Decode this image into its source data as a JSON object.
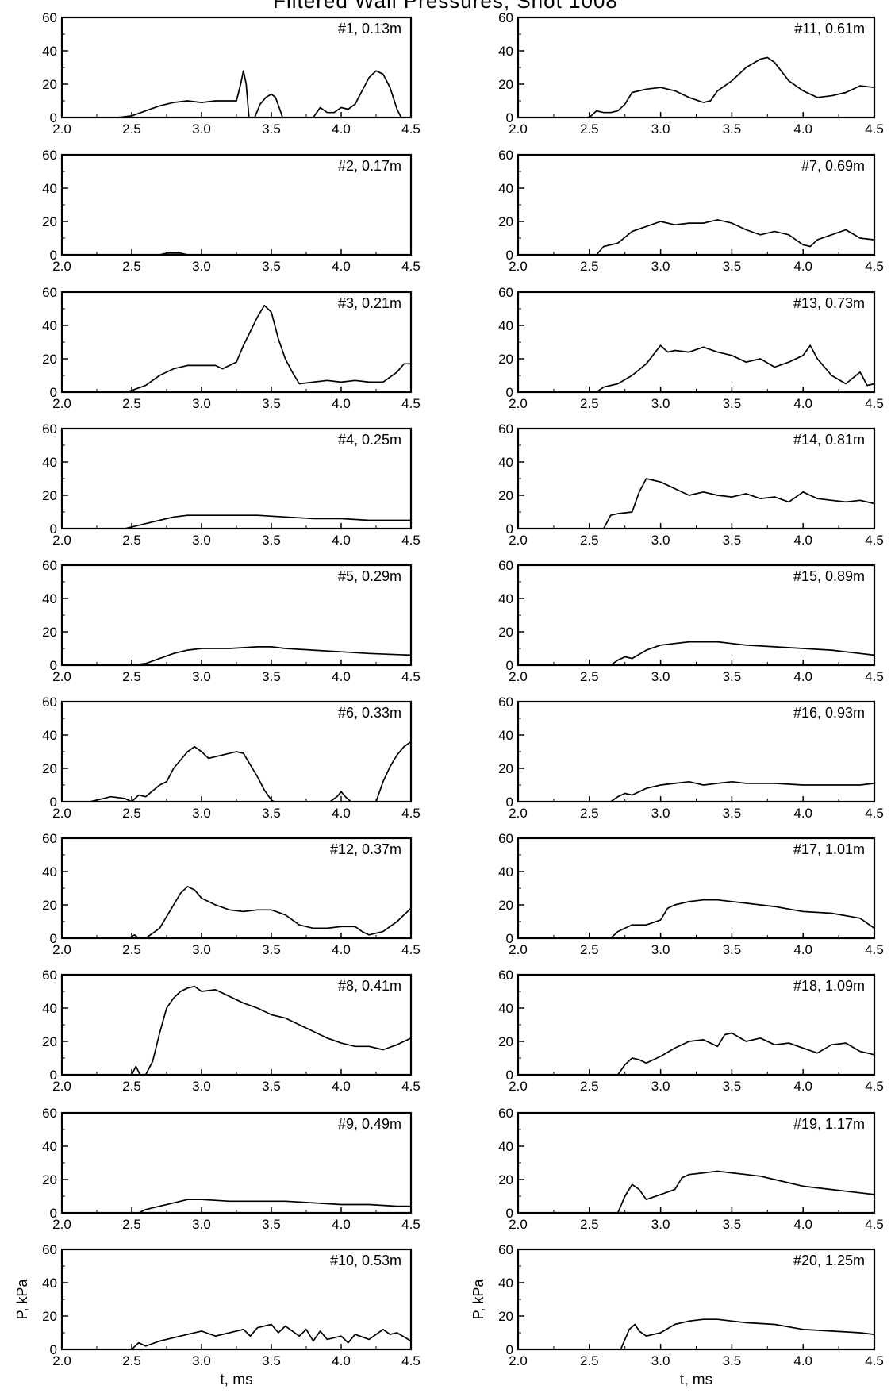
{
  "title": "Filtered Wall Pressures, Shot 1008",
  "axis_ticks_x": [
    "2.0",
    "2.5",
    "3.0",
    "3.5",
    "4.0",
    "4.5"
  ],
  "axis_ticks_y": [
    "0",
    "20",
    "40",
    "60"
  ],
  "left_column": {
    "ylabel": "P, kPa",
    "xlabel": "t, ms"
  },
  "right_column": {
    "ylabel": "P, kPa",
    "xlabel": "t, ms"
  },
  "chart_data": [
    {
      "type": "line",
      "label": "#1, 0.13m",
      "xlim": [
        2.0,
        4.5
      ],
      "ylim": [
        0,
        60
      ],
      "segments": [
        {
          "x": [
            2.0,
            2.4,
            2.5,
            2.6,
            2.7,
            2.8,
            2.9,
            3.0,
            3.1,
            3.2,
            3.25,
            3.28,
            3.3,
            3.32,
            3.34
          ],
          "y": [
            0,
            0,
            1,
            4,
            7,
            9,
            10,
            9,
            10,
            10,
            10,
            20,
            28,
            20,
            0
          ]
        },
        {
          "x": [
            3.38,
            3.42,
            3.46,
            3.5,
            3.53,
            3.56,
            3.58
          ],
          "y": [
            0,
            8,
            12,
            14,
            12,
            5,
            0
          ]
        },
        {
          "x": [
            3.8,
            3.85,
            3.9,
            3.95,
            4.0,
            4.05,
            4.1,
            4.15,
            4.2,
            4.25,
            4.3,
            4.35,
            4.4,
            4.43
          ],
          "y": [
            0,
            6,
            3,
            3,
            6,
            5,
            8,
            16,
            24,
            28,
            26,
            18,
            5,
            0
          ]
        }
      ]
    },
    {
      "type": "line",
      "label": "#11, 0.61m",
      "xlim": [
        2.0,
        4.5
      ],
      "ylim": [
        0,
        60
      ],
      "x": [
        2.0,
        2.5,
        2.55,
        2.6,
        2.65,
        2.7,
        2.75,
        2.8,
        2.9,
        3.0,
        3.1,
        3.2,
        3.3,
        3.35,
        3.4,
        3.5,
        3.6,
        3.7,
        3.75,
        3.8,
        3.9,
        4.0,
        4.1,
        4.2,
        4.3,
        4.4,
        4.5
      ],
      "y": [
        0,
        0,
        4,
        3,
        3,
        4,
        8,
        15,
        17,
        18,
        16,
        12,
        9,
        10,
        16,
        22,
        30,
        35,
        36,
        33,
        22,
        16,
        12,
        13,
        15,
        19,
        18
      ]
    },
    {
      "type": "line",
      "label": "#2, 0.17m",
      "xlim": [
        2.0,
        4.5
      ],
      "ylim": [
        0,
        60
      ],
      "x": [
        2.0,
        2.7,
        2.75,
        2.8,
        2.85,
        2.9,
        4.5
      ],
      "y": [
        0,
        0,
        1,
        1,
        1,
        0,
        0
      ]
    },
    {
      "type": "line",
      "label": "#7, 0.69m",
      "xlim": [
        2.0,
        4.5
      ],
      "ylim": [
        0,
        60
      ],
      "x": [
        2.0,
        2.55,
        2.6,
        2.7,
        2.8,
        2.9,
        3.0,
        3.1,
        3.2,
        3.3,
        3.4,
        3.5,
        3.6,
        3.7,
        3.8,
        3.9,
        4.0,
        4.05,
        4.1,
        4.2,
        4.3,
        4.4,
        4.5
      ],
      "y": [
        0,
        0,
        5,
        7,
        14,
        17,
        20,
        18,
        19,
        19,
        21,
        19,
        15,
        12,
        14,
        12,
        6,
        5,
        9,
        12,
        15,
        10,
        9
      ]
    },
    {
      "type": "line",
      "label": "#3, 0.21m",
      "xlim": [
        2.0,
        4.5
      ],
      "ylim": [
        0,
        60
      ],
      "x": [
        2.0,
        2.45,
        2.5,
        2.6,
        2.7,
        2.8,
        2.9,
        3.0,
        3.1,
        3.15,
        3.2,
        3.25,
        3.3,
        3.4,
        3.45,
        3.5,
        3.55,
        3.6,
        3.65,
        3.7,
        3.8,
        3.9,
        4.0,
        4.1,
        4.2,
        4.3,
        4.4,
        4.45,
        4.5
      ],
      "y": [
        0,
        0,
        1,
        4,
        10,
        14,
        16,
        16,
        16,
        14,
        16,
        18,
        28,
        45,
        52,
        48,
        32,
        20,
        12,
        5,
        6,
        7,
        6,
        7,
        6,
        6,
        12,
        17,
        17
      ]
    },
    {
      "type": "line",
      "label": "#13, 0.73m",
      "xlim": [
        2.0,
        4.5
      ],
      "ylim": [
        0,
        60
      ],
      "x": [
        2.0,
        2.55,
        2.6,
        2.7,
        2.8,
        2.9,
        3.0,
        3.05,
        3.1,
        3.2,
        3.3,
        3.4,
        3.5,
        3.6,
        3.7,
        3.8,
        3.9,
        4.0,
        4.05,
        4.1,
        4.2,
        4.3,
        4.4,
        4.45,
        4.5
      ],
      "y": [
        0,
        0,
        3,
        5,
        10,
        17,
        28,
        24,
        25,
        24,
        27,
        24,
        22,
        18,
        20,
        15,
        18,
        22,
        28,
        20,
        10,
        5,
        12,
        4,
        5
      ]
    },
    {
      "type": "line",
      "label": "#4, 0.25m",
      "xlim": [
        2.0,
        4.5
      ],
      "ylim": [
        0,
        60
      ],
      "x": [
        2.0,
        2.45,
        2.5,
        2.6,
        2.7,
        2.8,
        2.9,
        3.0,
        3.2,
        3.4,
        3.6,
        3.8,
        4.0,
        4.2,
        4.5
      ],
      "y": [
        0,
        0,
        1,
        3,
        5,
        7,
        8,
        8,
        8,
        8,
        7,
        6,
        6,
        5,
        5
      ]
    },
    {
      "type": "line",
      "label": "#14, 0.81m",
      "xlim": [
        2.0,
        4.5
      ],
      "ylim": [
        0,
        60
      ],
      "x": [
        2.0,
        2.6,
        2.65,
        2.7,
        2.8,
        2.85,
        2.9,
        3.0,
        3.1,
        3.2,
        3.3,
        3.4,
        3.5,
        3.6,
        3.7,
        3.8,
        3.9,
        4.0,
        4.1,
        4.2,
        4.3,
        4.4,
        4.5
      ],
      "y": [
        0,
        0,
        8,
        9,
        10,
        22,
        30,
        28,
        24,
        20,
        22,
        20,
        19,
        21,
        18,
        19,
        16,
        22,
        18,
        17,
        16,
        17,
        15
      ]
    },
    {
      "type": "line",
      "label": "#5, 0.29m",
      "xlim": [
        2.0,
        4.5
      ],
      "ylim": [
        0,
        60
      ],
      "x": [
        2.0,
        2.5,
        2.6,
        2.7,
        2.8,
        2.9,
        3.0,
        3.2,
        3.4,
        3.5,
        3.6,
        3.8,
        4.0,
        4.2,
        4.5
      ],
      "y": [
        0,
        0,
        1,
        4,
        7,
        9,
        10,
        10,
        11,
        11,
        10,
        9,
        8,
        7,
        6
      ]
    },
    {
      "type": "line",
      "label": "#15, 0.89m",
      "xlim": [
        2.0,
        4.5
      ],
      "ylim": [
        0,
        60
      ],
      "x": [
        2.0,
        2.65,
        2.7,
        2.75,
        2.8,
        2.9,
        3.0,
        3.1,
        3.2,
        3.3,
        3.4,
        3.6,
        3.8,
        4.0,
        4.2,
        4.4,
        4.5
      ],
      "y": [
        0,
        0,
        3,
        5,
        4,
        9,
        12,
        13,
        14,
        14,
        14,
        12,
        11,
        10,
        9,
        7,
        6
      ]
    },
    {
      "type": "line",
      "label": "#6, 0.33m",
      "xlim": [
        2.0,
        4.5
      ],
      "ylim": [
        0,
        60
      ],
      "segments": [
        {
          "x": [
            2.0,
            2.2,
            2.35,
            2.45,
            2.5,
            2.55,
            2.6,
            2.7,
            2.75,
            2.8,
            2.9,
            2.95,
            3.0,
            3.05,
            3.1,
            3.2,
            3.25,
            3.3,
            3.35,
            3.4,
            3.45,
            3.5,
            3.52
          ],
          "y": [
            0,
            0,
            3,
            2,
            0,
            4,
            3,
            10,
            12,
            20,
            30,
            33,
            30,
            26,
            27,
            29,
            30,
            29,
            22,
            15,
            7,
            1,
            0
          ]
        },
        {
          "x": [
            3.92,
            3.97,
            4.0,
            4.03,
            4.07
          ],
          "y": [
            0,
            3,
            6,
            3,
            0
          ]
        },
        {
          "x": [
            4.25,
            4.3,
            4.35,
            4.4,
            4.45,
            4.5
          ],
          "y": [
            0,
            12,
            21,
            28,
            33,
            36
          ]
        }
      ]
    },
    {
      "type": "line",
      "label": "#16, 0.93m",
      "xlim": [
        2.0,
        4.5
      ],
      "ylim": [
        0,
        60
      ],
      "x": [
        2.0,
        2.65,
        2.7,
        2.75,
        2.8,
        2.9,
        3.0,
        3.1,
        3.2,
        3.3,
        3.4,
        3.5,
        3.6,
        3.8,
        4.0,
        4.2,
        4.4,
        4.5
      ],
      "y": [
        0,
        0,
        3,
        5,
        4,
        8,
        10,
        11,
        12,
        10,
        11,
        12,
        11,
        11,
        10,
        10,
        10,
        11
      ]
    },
    {
      "type": "line",
      "label": "#12, 0.37m",
      "xlim": [
        2.0,
        4.5
      ],
      "ylim": [
        0,
        60
      ],
      "segments": [
        {
          "x": [
            2.48,
            2.52,
            2.55
          ],
          "y": [
            0,
            2,
            0
          ]
        },
        {
          "x": [
            2.6,
            2.7,
            2.8,
            2.85,
            2.9,
            2.95,
            3.0,
            3.1,
            3.2,
            3.3,
            3.4,
            3.5,
            3.6,
            3.7,
            3.8,
            3.9,
            4.0,
            4.1,
            4.15,
            4.2,
            4.3,
            4.4,
            4.5
          ],
          "y": [
            0,
            6,
            20,
            27,
            31,
            29,
            24,
            20,
            17,
            16,
            17,
            17,
            14,
            8,
            6,
            6,
            7,
            7,
            4,
            2,
            4,
            10,
            18
          ]
        }
      ]
    },
    {
      "type": "line",
      "label": "#17, 1.01m",
      "xlim": [
        2.0,
        4.5
      ],
      "ylim": [
        0,
        60
      ],
      "x": [
        2.0,
        2.65,
        2.7,
        2.75,
        2.8,
        2.9,
        3.0,
        3.05,
        3.1,
        3.2,
        3.3,
        3.4,
        3.5,
        3.6,
        3.8,
        4.0,
        4.2,
        4.4,
        4.5
      ],
      "y": [
        0,
        0,
        4,
        6,
        8,
        8,
        11,
        18,
        20,
        22,
        23,
        23,
        22,
        21,
        19,
        16,
        15,
        12,
        6
      ]
    },
    {
      "type": "line",
      "label": "#8, 0.41m",
      "xlim": [
        2.0,
        4.5
      ],
      "ylim": [
        0,
        60
      ],
      "segments": [
        {
          "x": [
            2.5,
            2.53,
            2.56
          ],
          "y": [
            0,
            5,
            0
          ]
        },
        {
          "x": [
            2.6,
            2.65,
            2.7,
            2.75,
            2.8,
            2.85,
            2.9,
            2.95,
            3.0,
            3.1,
            3.2,
            3.3,
            3.4,
            3.5,
            3.6,
            3.7,
            3.8,
            3.9,
            4.0,
            4.1,
            4.2,
            4.3,
            4.4,
            4.5
          ],
          "y": [
            0,
            8,
            25,
            40,
            46,
            50,
            52,
            53,
            50,
            51,
            47,
            43,
            40,
            36,
            34,
            30,
            26,
            22,
            19,
            17,
            17,
            15,
            18,
            22
          ]
        }
      ]
    },
    {
      "type": "line",
      "label": "#18, 1.09m",
      "xlim": [
        2.0,
        4.5
      ],
      "ylim": [
        0,
        60
      ],
      "x": [
        2.0,
        2.7,
        2.75,
        2.8,
        2.85,
        2.9,
        3.0,
        3.1,
        3.2,
        3.3,
        3.4,
        3.45,
        3.5,
        3.6,
        3.7,
        3.8,
        3.9,
        4.0,
        4.1,
        4.2,
        4.3,
        4.4,
        4.5
      ],
      "y": [
        0,
        0,
        6,
        10,
        9,
        7,
        11,
        16,
        20,
        21,
        17,
        24,
        25,
        20,
        22,
        18,
        19,
        16,
        13,
        18,
        19,
        14,
        12
      ]
    },
    {
      "type": "line",
      "label": "#9, 0.49m",
      "xlim": [
        2.0,
        4.5
      ],
      "ylim": [
        0,
        60
      ],
      "x": [
        2.0,
        2.55,
        2.6,
        2.7,
        2.8,
        2.9,
        3.0,
        3.2,
        3.4,
        3.6,
        3.8,
        4.0,
        4.2,
        4.4,
        4.5
      ],
      "y": [
        0,
        0,
        2,
        4,
        6,
        8,
        8,
        7,
        7,
        7,
        6,
        5,
        5,
        4,
        4
      ]
    },
    {
      "type": "line",
      "label": "#19, 1.17m",
      "xlim": [
        2.0,
        4.5
      ],
      "ylim": [
        0,
        60
      ],
      "x": [
        2.0,
        2.7,
        2.75,
        2.8,
        2.85,
        2.9,
        3.0,
        3.1,
        3.15,
        3.2,
        3.3,
        3.4,
        3.5,
        3.6,
        3.7,
        3.8,
        4.0,
        4.2,
        4.4,
        4.5
      ],
      "y": [
        0,
        0,
        10,
        17,
        14,
        8,
        11,
        14,
        21,
        23,
        24,
        25,
        24,
        23,
        22,
        20,
        16,
        14,
        12,
        11
      ]
    },
    {
      "type": "line",
      "label": "#10, 0.53m",
      "xlim": [
        2.0,
        4.5
      ],
      "ylim": [
        0,
        60
      ],
      "x": [
        2.0,
        2.5,
        2.55,
        2.6,
        2.7,
        2.8,
        2.9,
        3.0,
        3.1,
        3.2,
        3.3,
        3.35,
        3.4,
        3.5,
        3.55,
        3.6,
        3.7,
        3.75,
        3.8,
        3.85,
        3.9,
        4.0,
        4.05,
        4.1,
        4.2,
        4.3,
        4.35,
        4.4,
        4.5
      ],
      "y": [
        0,
        0,
        4,
        2,
        5,
        7,
        9,
        11,
        8,
        10,
        12,
        8,
        13,
        15,
        10,
        14,
        8,
        12,
        5,
        11,
        6,
        8,
        4,
        9,
        6,
        12,
        9,
        10,
        5
      ]
    },
    {
      "type": "line",
      "label": "#20, 1.25m",
      "xlim": [
        2.0,
        4.5
      ],
      "ylim": [
        0,
        60
      ],
      "x": [
        2.0,
        2.72,
        2.78,
        2.82,
        2.85,
        2.9,
        3.0,
        3.1,
        3.2,
        3.3,
        3.4,
        3.5,
        3.6,
        3.8,
        4.0,
        4.2,
        4.4,
        4.5
      ],
      "y": [
        0,
        0,
        12,
        15,
        11,
        8,
        10,
        15,
        17,
        18,
        18,
        17,
        16,
        15,
        12,
        11,
        10,
        9
      ]
    }
  ]
}
